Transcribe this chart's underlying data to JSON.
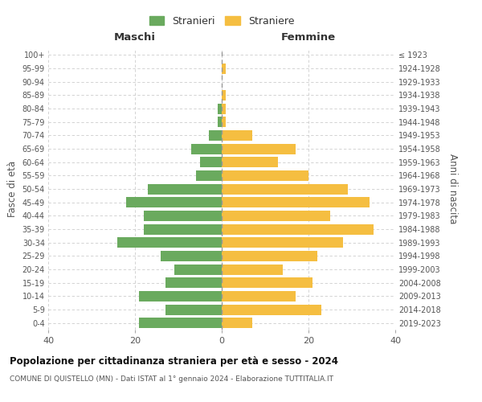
{
  "age_groups": [
    "0-4",
    "5-9",
    "10-14",
    "15-19",
    "20-24",
    "25-29",
    "30-34",
    "35-39",
    "40-44",
    "45-49",
    "50-54",
    "55-59",
    "60-64",
    "65-69",
    "70-74",
    "75-79",
    "80-84",
    "85-89",
    "90-94",
    "95-99",
    "100+"
  ],
  "birth_years": [
    "2019-2023",
    "2014-2018",
    "2009-2013",
    "2004-2008",
    "1999-2003",
    "1994-1998",
    "1989-1993",
    "1984-1988",
    "1979-1983",
    "1974-1978",
    "1969-1973",
    "1964-1968",
    "1959-1963",
    "1954-1958",
    "1949-1953",
    "1944-1948",
    "1939-1943",
    "1934-1938",
    "1929-1933",
    "1924-1928",
    "≤ 1923"
  ],
  "maschi": [
    19,
    13,
    19,
    13,
    11,
    14,
    24,
    18,
    18,
    22,
    17,
    6,
    5,
    7,
    3,
    1,
    1,
    0,
    0,
    0,
    0
  ],
  "femmine": [
    7,
    23,
    17,
    21,
    14,
    22,
    28,
    35,
    25,
    34,
    29,
    20,
    13,
    17,
    7,
    1,
    1,
    1,
    0,
    1,
    0
  ],
  "color_maschi": "#6aaa5e",
  "color_femmine": "#f5be41",
  "title_main": "Popolazione per cittadinanza straniera per età e sesso - 2024",
  "title_sub": "COMUNE DI QUISTELLO (MN) - Dati ISTAT al 1° gennaio 2024 - Elaborazione TUTTITALIA.IT",
  "label_maschi": "Stranieri",
  "label_femmine": "Straniere",
  "label_left": "Maschi",
  "label_right": "Femmine",
  "ylabel_left": "Fasce di età",
  "ylabel_right": "Anni di nascita",
  "xlim": 40,
  "background_color": "#ffffff"
}
